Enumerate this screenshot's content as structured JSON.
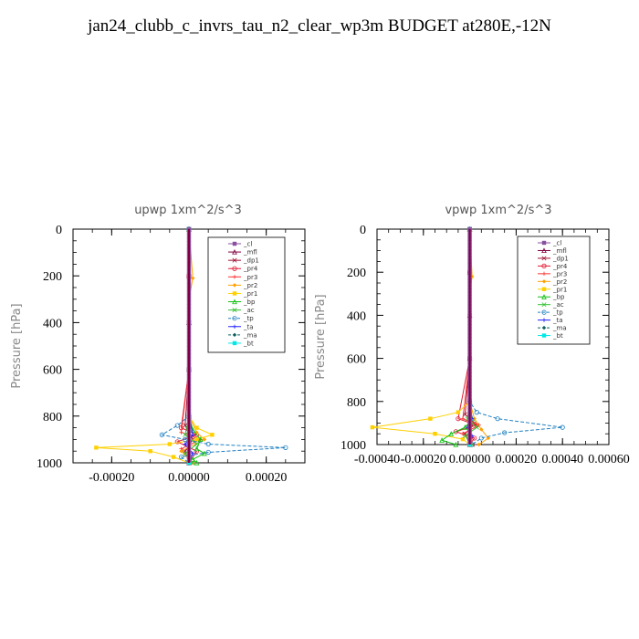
{
  "title": "jan24_clubb_c_invrs_tau_n2_clear_wp3m  BUDGET at280E,-12N",
  "legend_labels": [
    "_cl",
    "_mfl",
    "_dp1",
    "_pr4",
    "_pr3",
    "_pr2",
    "_pr1",
    "_bp",
    "_ac",
    "_tp",
    "_ta",
    "_ma",
    "_bt"
  ],
  "series_colors": [
    "#8a4fa0",
    "#800040",
    "#a01030",
    "#e01830",
    "#ff3030",
    "#ffa000",
    "#ffd000",
    "#10c010",
    "#30c030",
    "#2080c0",
    "#2020ff",
    "#106060",
    "#00e8e8"
  ],
  "chart_data": [
    {
      "type": "line",
      "title": "upwp   1xm^2/s^3",
      "ylabel": "Pressure [hPa]",
      "xlim": [
        -0.0003,
        0.0003
      ],
      "ylim": [
        1000,
        0
      ],
      "xticks": [
        -0.0002,
        0.0,
        0.0002
      ],
      "xtick_labels": [
        "-0.00020",
        "0.00000",
        "0.00020"
      ],
      "yticks": [
        0,
        200,
        400,
        600,
        800,
        1000
      ],
      "ytick_labels": [
        "0",
        "200",
        "400",
        "600",
        "800",
        "1000"
      ],
      "legend_position": "top-right",
      "series": [
        {
          "name": "_cl",
          "x": [
            0,
            0,
            0,
            0,
            0,
            0
          ],
          "y": [
            0,
            200,
            400,
            600,
            800,
            1000
          ]
        },
        {
          "name": "_mfl",
          "x": [
            0,
            0,
            0,
            0,
            0,
            0,
            0
          ],
          "y": [
            0,
            200,
            400,
            600,
            800,
            900,
            1000
          ]
        },
        {
          "name": "_dp1",
          "x": [
            0,
            0,
            0,
            0,
            -1e-05,
            1e-05,
            -1e-05,
            0
          ],
          "y": [
            0,
            200,
            400,
            600,
            840,
            900,
            950,
            1000
          ]
        },
        {
          "name": "_pr4",
          "x": [
            0,
            0,
            0,
            -2e-05,
            2e-05,
            -3e-05,
            2e-05,
            0
          ],
          "y": [
            0,
            200,
            600,
            850,
            880,
            910,
            950,
            1000
          ]
        },
        {
          "name": "_pr3",
          "x": [
            0,
            0,
            0,
            -2e-05,
            3e-05,
            -2e-05,
            1e-05
          ],
          "y": [
            0,
            200,
            600,
            870,
            900,
            940,
            1000
          ]
        },
        {
          "name": "_pr2",
          "x": [
            0,
            1e-05,
            0,
            0,
            2e-05,
            4e-05,
            -2e-05,
            1e-05
          ],
          "y": [
            0,
            210,
            300,
            800,
            870,
            900,
            950,
            1000
          ]
        },
        {
          "name": "_pr1",
          "x": [
            0,
            0,
            2e-05,
            6e-05,
            2e-05,
            -5e-05,
            -0.00024,
            -0.0001,
            -4e-05,
            0
          ],
          "y": [
            0,
            800,
            850,
            880,
            900,
            920,
            935,
            950,
            975,
            1000
          ]
        },
        {
          "name": "_bp",
          "x": [
            0,
            0,
            1e-05,
            3e-05,
            2e-05,
            4e-05,
            1e-05,
            2e-05
          ],
          "y": [
            0,
            800,
            860,
            900,
            940,
            960,
            985,
            1000
          ]
        },
        {
          "name": "_ac",
          "x": [
            0,
            0,
            -1e-05,
            2e-05,
            -1e-05,
            1e-05
          ],
          "y": [
            0,
            800,
            880,
            920,
            960,
            1000
          ]
        },
        {
          "name": "_tp",
          "x": [
            0,
            0,
            -3e-05,
            -7e-05,
            -1e-05,
            5e-05,
            0.00025,
            5e-05,
            -2e-05,
            0
          ],
          "y": [
            0,
            800,
            840,
            880,
            900,
            920,
            935,
            955,
            975,
            1000
          ]
        },
        {
          "name": "_ta",
          "x": [
            0,
            0,
            1e-05,
            -1e-05,
            1e-05,
            0
          ],
          "y": [
            0,
            800,
            880,
            920,
            960,
            1000
          ]
        },
        {
          "name": "_ma",
          "x": [
            0,
            0,
            0,
            0
          ],
          "y": [
            0,
            600,
            900,
            1000
          ]
        },
        {
          "name": "_bt",
          "x": [
            0,
            0,
            0,
            0
          ],
          "y": [
            0,
            600,
            900,
            1000
          ]
        }
      ]
    },
    {
      "type": "line",
      "title": "vpwp   1xm^2/s^3",
      "ylabel": "Pressure [hPa]",
      "xlim": [
        -0.0004,
        0.0006
      ],
      "ylim": [
        1000,
        0
      ],
      "xticks": [
        -0.0004,
        -0.0002,
        0.0,
        0.0002,
        0.0004,
        0.0006
      ],
      "xtick_labels": [
        "-0.00040",
        "-0.00020",
        "0.00000",
        "0.00020",
        "0.00040",
        "0.00060"
      ],
      "yticks": [
        0,
        200,
        400,
        600,
        800,
        1000
      ],
      "ytick_labels": [
        "0",
        "200",
        "400",
        "600",
        "800",
        "1000"
      ],
      "legend_position": "top-right",
      "series": [
        {
          "name": "_cl",
          "x": [
            0,
            0,
            0,
            0,
            0,
            0
          ],
          "y": [
            0,
            200,
            400,
            600,
            800,
            1000
          ]
        },
        {
          "name": "_mfl",
          "x": [
            0,
            0,
            0,
            0,
            0,
            0,
            0
          ],
          "y": [
            0,
            200,
            400,
            600,
            800,
            900,
            1000
          ]
        },
        {
          "name": "_dp1",
          "x": [
            0,
            0,
            0,
            -2e-05,
            2e-05,
            -2e-05,
            0
          ],
          "y": [
            0,
            200,
            600,
            860,
            900,
            950,
            1000
          ]
        },
        {
          "name": "_pr4",
          "x": [
            0,
            0,
            0,
            -5e-05,
            3e-05,
            -6e-05,
            2e-05,
            0
          ],
          "y": [
            0,
            200,
            600,
            880,
            910,
            940,
            970,
            1000
          ]
        },
        {
          "name": "_pr3",
          "x": [
            0,
            0,
            0,
            -3e-05,
            4e-05,
            -3e-05,
            2e-05
          ],
          "y": [
            0,
            200,
            600,
            880,
            910,
            950,
            1000
          ]
        },
        {
          "name": "_pr2",
          "x": [
            0,
            1e-05,
            0,
            0,
            2e-05,
            5e-05,
            8e-05,
            4e-05
          ],
          "y": [
            0,
            220,
            300,
            800,
            880,
            930,
            970,
            1000
          ]
        },
        {
          "name": "_pr1",
          "x": [
            0,
            0,
            -5e-05,
            -0.00017,
            -0.00042,
            -0.00015,
            -3e-05,
            0
          ],
          "y": [
            0,
            800,
            850,
            880,
            920,
            950,
            975,
            1000
          ]
        },
        {
          "name": "_bp",
          "x": [
            0,
            0,
            1e-05,
            -2e-05,
            -8e-05,
            -0.00012,
            -6e-05
          ],
          "y": [
            0,
            800,
            880,
            920,
            950,
            980,
            1000
          ]
        },
        {
          "name": "_ac",
          "x": [
            0,
            0,
            -1e-05,
            3e-05,
            -2e-05,
            1e-05
          ],
          "y": [
            0,
            800,
            880,
            920,
            960,
            1000
          ]
        },
        {
          "name": "_tp",
          "x": [
            0,
            0,
            3e-05,
            0.00012,
            0.0004,
            0.00015,
            5e-05,
            1e-05
          ],
          "y": [
            0,
            800,
            850,
            880,
            920,
            945,
            970,
            1000
          ]
        },
        {
          "name": "_ta",
          "x": [
            0,
            0,
            1e-05,
            -1e-05,
            1e-05,
            0
          ],
          "y": [
            0,
            800,
            880,
            920,
            960,
            1000
          ]
        },
        {
          "name": "_ma",
          "x": [
            0,
            0,
            0,
            0
          ],
          "y": [
            0,
            600,
            900,
            1000
          ]
        },
        {
          "name": "_bt",
          "x": [
            0,
            0,
            0,
            0
          ],
          "y": [
            0,
            600,
            900,
            1000
          ]
        }
      ]
    }
  ]
}
